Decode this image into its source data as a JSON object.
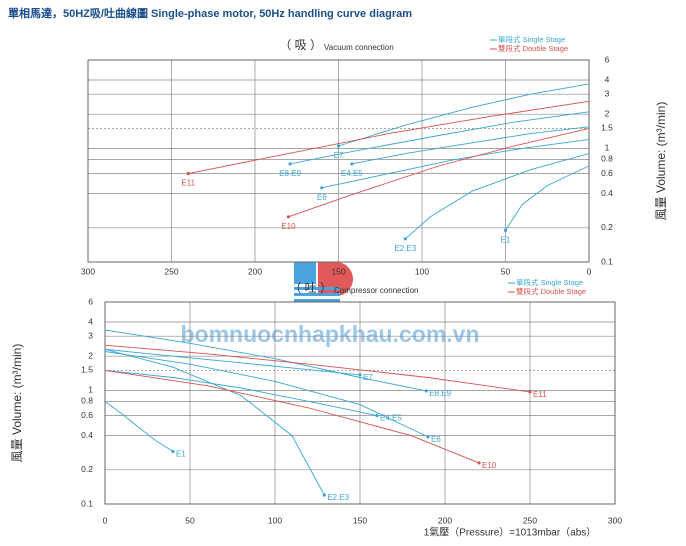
{
  "title": "單相馬達，50HZ吸/吐曲線圖 Single-phase motor, 50Hz handling curve diagram",
  "watermark": "bomnuocnhapkhau.com.vn",
  "chart_data": [
    {
      "type": "line",
      "title": "（ 吸 ）",
      "subtitle": "Vacuum connection",
      "y_label": "風量 Volume: (m³/min)",
      "y_axis": "right",
      "log_y": true,
      "grid": true,
      "dashed_grid": [
        1.5
      ],
      "xlim": [
        300,
        0
      ],
      "ylim": [
        0.1,
        6
      ],
      "xticks": [
        300,
        250,
        200,
        150,
        100,
        50,
        0
      ],
      "yticks": [
        0.1,
        0.2,
        0.4,
        0.6,
        0.8,
        1,
        1.5,
        2,
        3,
        4,
        6
      ],
      "legend": [
        {
          "name": "單段式 Single Stage",
          "color": "#3aa7d6"
        },
        {
          "name": "雙段式 Double Stage",
          "color": "#d9534f"
        }
      ],
      "series": [
        {
          "name": "E1",
          "color": "#3aa7d6",
          "x": [
            50,
            40,
            25,
            10,
            0
          ],
          "values": [
            0.19,
            0.32,
            0.47,
            0.6,
            0.7
          ]
        },
        {
          "name": "E2.E3",
          "color": "#3aa7d6",
          "x": [
            110,
            95,
            70,
            35,
            0
          ],
          "values": [
            0.16,
            0.25,
            0.42,
            0.65,
            0.9
          ]
        },
        {
          "name": "E4.E5",
          "color": "#3aa7d6",
          "x": [
            142,
            110,
            70,
            35,
            0
          ],
          "values": [
            0.73,
            0.9,
            1.12,
            1.35,
            1.55
          ]
        },
        {
          "name": "E6",
          "color": "#3aa7d6",
          "x": [
            160,
            120,
            80,
            40,
            0
          ],
          "values": [
            0.45,
            0.6,
            0.8,
            1.0,
            1.2
          ]
        },
        {
          "name": "E7",
          "color": "#3aa7d6",
          "x": [
            150,
            110,
            70,
            35,
            0
          ],
          "values": [
            1.05,
            1.6,
            2.3,
            3.0,
            3.7
          ]
        },
        {
          "name": "E8.E9",
          "color": "#3aa7d6",
          "x": [
            179,
            140,
            90,
            45,
            0
          ],
          "values": [
            0.73,
            0.95,
            1.3,
            1.7,
            2.1
          ]
        },
        {
          "name": "E10",
          "color": "#d9534f",
          "x": [
            180,
            140,
            90,
            45,
            0
          ],
          "values": [
            0.25,
            0.4,
            0.7,
            1.05,
            1.5
          ]
        },
        {
          "name": "E11",
          "color": "#d9534f",
          "x": [
            240,
            180,
            120,
            60,
            0
          ],
          "values": [
            0.6,
            0.9,
            1.35,
            1.9,
            2.6
          ]
        }
      ]
    },
    {
      "type": "line",
      "title": "（ 吐 ）",
      "subtitle": "Compressor connection",
      "y_label": "風量 Volume: (m³/min)",
      "x_label": "1氣壓（Pressure）=1013mbar（abs）",
      "y_axis": "left",
      "log_y": true,
      "grid": true,
      "dashed_grid": [
        1.5
      ],
      "xlim": [
        0,
        300
      ],
      "ylim": [
        0.1,
        6
      ],
      "xticks": [
        0,
        50,
        100,
        150,
        200,
        250,
        300
      ],
      "yticks": [
        0.1,
        0.2,
        0.4,
        0.6,
        0.8,
        1,
        1.5,
        2,
        3,
        4,
        6
      ],
      "legend": [
        {
          "name": "單段式 Single Stage",
          "color": "#3aa7d6"
        },
        {
          "name": "雙段式 Double Stage",
          "color": "#d9534f"
        }
      ],
      "series": [
        {
          "name": "E1",
          "color": "#3aa7d6",
          "x": [
            0,
            10,
            20,
            30,
            40
          ],
          "values": [
            0.8,
            0.62,
            0.47,
            0.36,
            0.29
          ]
        },
        {
          "name": "E2.E3",
          "color": "#3aa7d6",
          "x": [
            0,
            40,
            80,
            110,
            129
          ],
          "values": [
            2.3,
            1.6,
            0.9,
            0.4,
            0.12
          ]
        },
        {
          "name": "E4.E5",
          "color": "#3aa7d6",
          "x": [
            0,
            40,
            80,
            120,
            160
          ],
          "values": [
            1.5,
            1.3,
            1.05,
            0.8,
            0.6
          ]
        },
        {
          "name": "E6",
          "color": "#3aa7d6",
          "x": [
            0,
            50,
            100,
            150,
            190
          ],
          "values": [
            2.2,
            1.7,
            1.2,
            0.75,
            0.39
          ]
        },
        {
          "name": "E7",
          "color": "#3aa7d6",
          "x": [
            0,
            40,
            80,
            120,
            150
          ],
          "values": [
            2.3,
            2.0,
            1.75,
            1.52,
            1.37
          ]
        },
        {
          "name": "E8.E9",
          "color": "#3aa7d6",
          "x": [
            0,
            50,
            100,
            150,
            189
          ],
          "values": [
            3.4,
            2.6,
            1.9,
            1.3,
            0.99
          ]
        },
        {
          "name": "E10",
          "color": "#d9534f",
          "x": [
            0,
            60,
            120,
            180,
            220
          ],
          "values": [
            1.5,
            1.1,
            0.7,
            0.4,
            0.23
          ]
        },
        {
          "name": "E11",
          "color": "#d9534f",
          "x": [
            0,
            60,
            120,
            190,
            250
          ],
          "values": [
            2.5,
            2.1,
            1.7,
            1.3,
            0.97
          ]
        }
      ]
    }
  ]
}
